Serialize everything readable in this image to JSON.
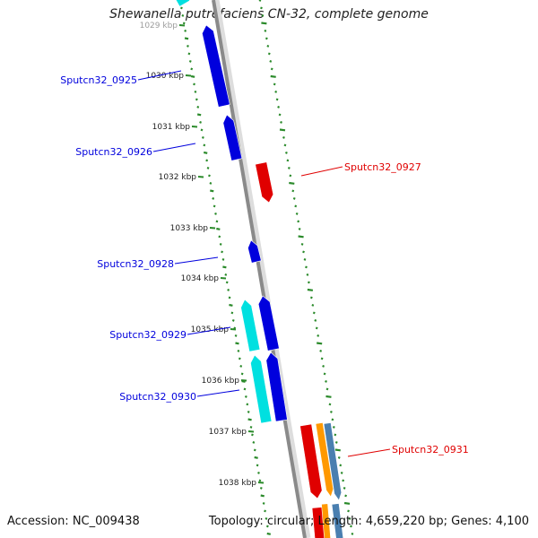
{
  "title": "Shewanella putrefaciens CN-32, complete genome",
  "footer": {
    "accession": "Accession: NC_009438",
    "stats": "Topology: circular; Length: 4,659,220 bp; Genes: 4,100"
  },
  "colors": {
    "forward_cds": "#0000dd",
    "reverse_cds": "#e00000",
    "forward_rna": "#00e0e0",
    "orange_feature": "#ff9900",
    "steelblue_feature": "#4a7fb0",
    "backbone": "#8a8a8a",
    "gc_ticks": "#2a8a2a"
  },
  "ticks": [
    {
      "label": "1029 kbp"
    },
    {
      "label": "1030 kbp"
    },
    {
      "label": "1031 kbp"
    },
    {
      "label": "1032 kbp"
    },
    {
      "label": "1033 kbp"
    },
    {
      "label": "1034 kbp"
    },
    {
      "label": "1035 kbp"
    },
    {
      "label": "1036 kbp"
    },
    {
      "label": "1037 kbp"
    },
    {
      "label": "1038 kbp"
    }
  ],
  "genes": [
    {
      "name": "Sputcn32_0925",
      "strand": "forward"
    },
    {
      "name": "Sputcn32_0926",
      "strand": "forward"
    },
    {
      "name": "Sputcn32_0927",
      "strand": "reverse"
    },
    {
      "name": "Sputcn32_0928",
      "strand": "forward"
    },
    {
      "name": "Sputcn32_0929",
      "strand": "forward"
    },
    {
      "name": "Sputcn32_0930",
      "strand": "forward"
    },
    {
      "name": "Sputcn32_0931",
      "strand": "reverse"
    }
  ]
}
